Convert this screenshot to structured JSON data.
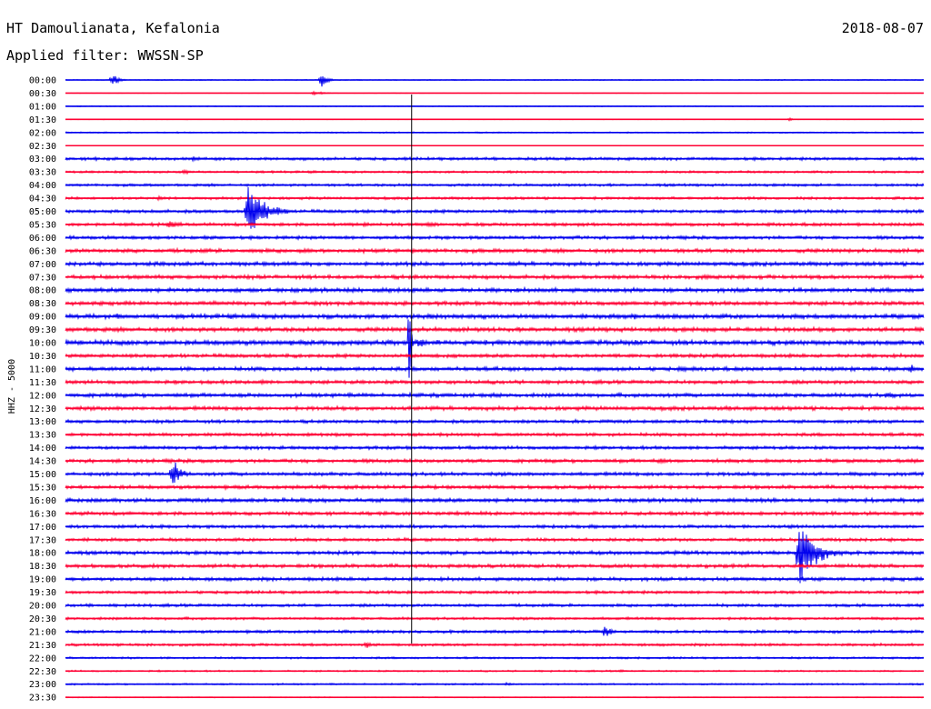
{
  "header": {
    "station": "HT Damoulianata, Kefalonia",
    "date": "2018-08-07",
    "filter": "Applied filter: WWSSN-SP"
  },
  "chart_data": {
    "type": "helicorder",
    "ylabel": "HHZ - 5000",
    "row_interval_minutes": 30,
    "grid": false,
    "colors": {
      "even_row": "#0000ee",
      "odd_row": "#ff0033"
    },
    "tick_labels": [
      "00:00",
      "00:30",
      "01:00",
      "01:30",
      "02:00",
      "02:30",
      "03:00",
      "03:30",
      "04:00",
      "04:30",
      "05:00",
      "05:30",
      "06:00",
      "06:30",
      "07:00",
      "07:30",
      "08:00",
      "08:30",
      "09:00",
      "09:30",
      "10:00",
      "10:30",
      "11:00",
      "11:30",
      "12:00",
      "12:30",
      "13:00",
      "13:30",
      "14:00",
      "14:30",
      "15:00",
      "15:30",
      "16:00",
      "16:30",
      "17:00",
      "17:30",
      "18:00",
      "18:30",
      "19:00",
      "19:30",
      "20:00",
      "20:30",
      "21:00",
      "21:30",
      "22:00",
      "22:30",
      "23:00",
      "23:30"
    ],
    "noise_level": [
      0.6,
      0.3,
      0.6,
      0.4,
      0.8,
      0.3,
      1.8,
      1.4,
      1.6,
      1.6,
      2.0,
      2.0,
      2.0,
      2.4,
      2.4,
      2.4,
      2.6,
      2.4,
      2.8,
      2.6,
      3.0,
      2.2,
      2.4,
      2.2,
      2.4,
      2.4,
      2.0,
      2.0,
      2.0,
      2.2,
      2.2,
      2.2,
      2.4,
      2.2,
      2.0,
      2.0,
      2.2,
      2.2,
      2.2,
      1.8,
      1.8,
      1.6,
      1.8,
      1.6,
      1.2,
      1.0,
      1.0,
      0.6
    ],
    "events": [
      {
        "row": 0,
        "minute": 1.6,
        "amplitude": 10,
        "duration_minutes": 0.7
      },
      {
        "row": 0,
        "minute": 8.9,
        "amplitude": 12,
        "duration_minutes": 0.6
      },
      {
        "row": 1,
        "minute": 8.6,
        "amplitude": 3,
        "duration_minutes": 1.2
      },
      {
        "row": 3,
        "minute": 25.3,
        "amplitude": 5,
        "duration_minutes": 0.2
      },
      {
        "row": 6,
        "minute": 1.0,
        "amplitude": 5,
        "duration_minutes": 0.5
      },
      {
        "row": 6,
        "minute": 4.4,
        "amplitude": 5,
        "duration_minutes": 0.8
      },
      {
        "row": 7,
        "minute": 4.1,
        "amplitude": 4,
        "duration_minutes": 1.0
      },
      {
        "row": 9,
        "minute": 3.2,
        "amplitude": 4,
        "duration_minutes": 0.6
      },
      {
        "row": 10,
        "minute": 6.3,
        "amplitude": 40,
        "duration_minutes": 1.8
      },
      {
        "row": 11,
        "minute": 3.5,
        "amplitude": 6,
        "duration_minutes": 1.6
      },
      {
        "row": 11,
        "minute": 10.3,
        "amplitude": 5,
        "duration_minutes": 0.8
      },
      {
        "row": 11,
        "minute": 12.6,
        "amplitude": 6,
        "duration_minutes": 0.8
      },
      {
        "row": 12,
        "minute": 4.8,
        "amplitude": 5,
        "duration_minutes": 0.5
      },
      {
        "row": 13,
        "minute": 8.3,
        "amplitude": 5,
        "duration_minutes": 0.8
      },
      {
        "row": 13,
        "minute": 4.8,
        "amplitude": 4,
        "duration_minutes": 0.6
      },
      {
        "row": 15,
        "minute": 22.3,
        "amplitude": 5,
        "duration_minutes": 0.6
      },
      {
        "row": 16,
        "minute": 11.0,
        "amplitude": 6,
        "duration_minutes": 0.6
      },
      {
        "row": 16,
        "minute": 25.6,
        "amplitude": 5,
        "duration_minutes": 0.5
      },
      {
        "row": 18,
        "minute": 1.8,
        "amplitude": 9,
        "duration_minutes": 0.3
      },
      {
        "row": 18,
        "minute": 19.8,
        "amplitude": 5,
        "duration_minutes": 0.7
      },
      {
        "row": 19,
        "minute": 24.2,
        "amplitude": 6,
        "duration_minutes": 0.8
      },
      {
        "row": 20,
        "minute": 12.0,
        "amplitude": 150,
        "duration_minutes": 0.15
      },
      {
        "row": 20,
        "minute": 12.3,
        "amplitude": 10,
        "duration_minutes": 0.8
      },
      {
        "row": 20,
        "minute": 17.8,
        "amplitude": 6,
        "duration_minutes": 0.5
      },
      {
        "row": 20,
        "minute": 19.5,
        "amplitude": 4,
        "duration_minutes": 0.5
      },
      {
        "row": 21,
        "minute": 17.0,
        "amplitude": 4,
        "duration_minutes": 0.4
      },
      {
        "row": 21,
        "minute": 22.6,
        "amplitude": 4,
        "duration_minutes": 0.8
      },
      {
        "row": 22,
        "minute": 21.5,
        "amplitude": 8,
        "duration_minutes": 0.6
      },
      {
        "row": 22,
        "minute": 29.5,
        "amplitude": 12,
        "duration_minutes": 0.3
      },
      {
        "row": 23,
        "minute": 6.8,
        "amplitude": 5,
        "duration_minutes": 0.6
      },
      {
        "row": 24,
        "minute": 28.7,
        "amplitude": 10,
        "duration_minutes": 0.4
      },
      {
        "row": 25,
        "minute": 12.2,
        "amplitude": 5,
        "duration_minutes": 0.8
      },
      {
        "row": 25,
        "minute": 23.0,
        "amplitude": 4,
        "duration_minutes": 0.6
      },
      {
        "row": 26,
        "minute": 17.8,
        "amplitude": 6,
        "duration_minutes": 0.3
      },
      {
        "row": 29,
        "minute": 20.7,
        "amplitude": 6,
        "duration_minutes": 0.8
      },
      {
        "row": 30,
        "minute": 3.7,
        "amplitude": 25,
        "duration_minutes": 0.8
      },
      {
        "row": 32,
        "minute": 11.8,
        "amplitude": 6,
        "duration_minutes": 0.8
      },
      {
        "row": 36,
        "minute": 25.6,
        "amplitude": 45,
        "duration_minutes": 1.8
      },
      {
        "row": 40,
        "minute": 0.8,
        "amplitude": 5,
        "duration_minutes": 0.2
      },
      {
        "row": 42,
        "minute": 18.8,
        "amplitude": 12,
        "duration_minutes": 0.6
      },
      {
        "row": 42,
        "minute": 10.3,
        "amplitude": 4,
        "duration_minutes": 0.4
      },
      {
        "row": 43,
        "minute": 10.5,
        "amplitude": 12,
        "duration_minutes": 0.3
      },
      {
        "row": 43,
        "minute": 1.8,
        "amplitude": 4,
        "duration_minutes": 0.3
      },
      {
        "row": 44,
        "minute": 19.3,
        "amplitude": 3,
        "duration_minutes": 0.7
      },
      {
        "row": 45,
        "minute": 19.3,
        "amplitude": 3,
        "duration_minutes": 0.7
      },
      {
        "row": 46,
        "minute": 15.3,
        "amplitude": 3,
        "duration_minutes": 1.0
      }
    ],
    "marker_minute": 12.1
  }
}
